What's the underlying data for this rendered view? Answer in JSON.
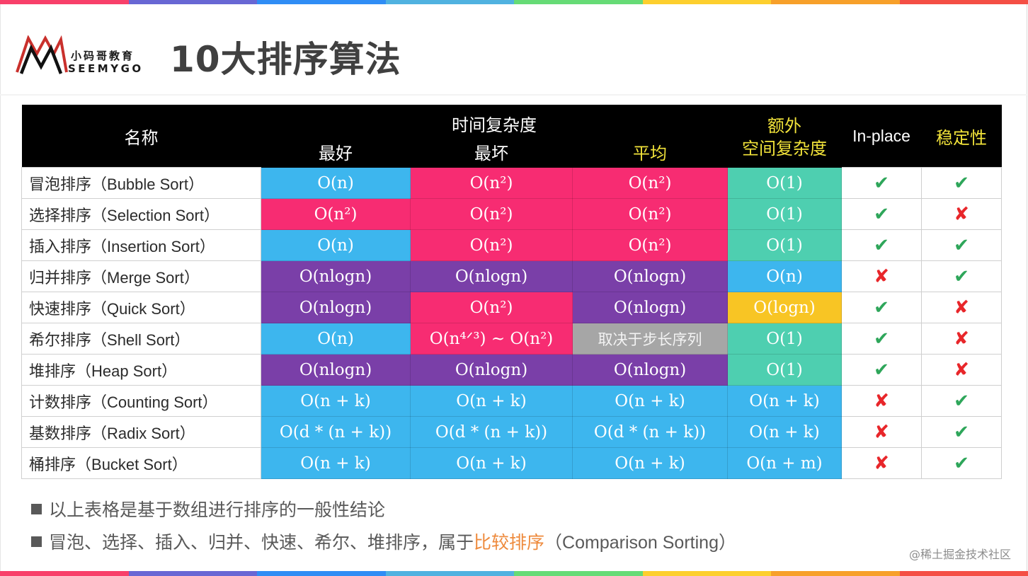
{
  "colors": {
    "rainbow": [
      "#f8406a",
      "#6867d4",
      "#2f8df5",
      "#50b2e0",
      "#66db76",
      "#fdcf2e",
      "#f7a02a",
      "#f44f45"
    ],
    "blue": "#3db6ee",
    "pink": "#f72c72",
    "purple": "#7a3fa8",
    "teal": "#4ecfb0",
    "yellow": "#f8c524",
    "gray": "#a6a6a6",
    "check_green": "#2ea65a",
    "cross_red": "#e8262a",
    "header_yellow": "#f2e33a",
    "highlight_orange": "#ee8a3c"
  },
  "logo": {
    "cn": "小码哥教育",
    "en": "SEEMYGO"
  },
  "title": "10大排序算法",
  "table": {
    "headers": {
      "name": "名称",
      "time_complexity": "时间复杂度",
      "best": "最好",
      "worst": "最坏",
      "average": "平均",
      "extra_space_line1": "额外",
      "extra_space_line2": "空间复杂度",
      "in_place": "In-place",
      "stable": "稳定性"
    },
    "rows": [
      {
        "cn": "冒泡排序（",
        "en": "Bubble Sort",
        "close": "）",
        "best": "O(n)",
        "best_c": "blue",
        "worst": "O(n²)",
        "worst_c": "pink",
        "avg": "O(n²)",
        "avg_c": "pink",
        "space": "O(1)",
        "space_c": "teal",
        "in_place": "✔",
        "in_place_ok": true,
        "stable": "✔",
        "stable_ok": true
      },
      {
        "cn": "选择排序（",
        "en": "Selection Sort",
        "close": "）",
        "best": "O(n²)",
        "best_c": "pink",
        "worst": "O(n²)",
        "worst_c": "pink",
        "avg": "O(n²)",
        "avg_c": "pink",
        "space": "O(1)",
        "space_c": "teal",
        "in_place": "✔",
        "in_place_ok": true,
        "stable": "✘",
        "stable_ok": false
      },
      {
        "cn": "插入排序（",
        "en": "Insertion Sort",
        "close": "）",
        "best": "O(n)",
        "best_c": "blue",
        "worst": "O(n²)",
        "worst_c": "pink",
        "avg": "O(n²)",
        "avg_c": "pink",
        "space": "O(1)",
        "space_c": "teal",
        "in_place": "✔",
        "in_place_ok": true,
        "stable": "✔",
        "stable_ok": true
      },
      {
        "cn": "归并排序（",
        "en": "Merge Sort",
        "close": "）",
        "best": "O(nlogn)",
        "best_c": "purple",
        "worst": "O(nlogn)",
        "worst_c": "purple",
        "avg": "O(nlogn)",
        "avg_c": "purple",
        "space": "O(n)",
        "space_c": "blue",
        "in_place": "✘",
        "in_place_ok": false,
        "stable": "✔",
        "stable_ok": true
      },
      {
        "cn": "快速排序（",
        "en": "Quick Sort",
        "close": "）",
        "best": "O(nlogn)",
        "best_c": "purple",
        "worst": "O(n²)",
        "worst_c": "pink",
        "avg": "O(nlogn)",
        "avg_c": "purple",
        "space": "O(logn)",
        "space_c": "yellow",
        "in_place": "✔",
        "in_place_ok": true,
        "stable": "✘",
        "stable_ok": false
      },
      {
        "cn": "希尔排序（",
        "en": "Shell Sort",
        "close": "）",
        "best": "O(n)",
        "best_c": "blue",
        "worst": "O(n⁴ᐟ³) ~ O(n²)",
        "worst_c": "pink",
        "avg": "取决于步长序列",
        "avg_c": "gray",
        "space": "O(1)",
        "space_c": "teal",
        "in_place": "✔",
        "in_place_ok": true,
        "stable": "✘",
        "stable_ok": false
      },
      {
        "cn": "堆排序（",
        "en": "Heap Sort",
        "close": "）",
        "best": "O(nlogn)",
        "best_c": "purple",
        "worst": "O(nlogn)",
        "worst_c": "purple",
        "avg": "O(nlogn)",
        "avg_c": "purple",
        "space": "O(1)",
        "space_c": "teal",
        "in_place": "✔",
        "in_place_ok": true,
        "stable": "✘",
        "stable_ok": false
      },
      {
        "cn": "计数排序（",
        "en": "Counting Sort",
        "close": "）",
        "best": "O(n + k)",
        "best_c": "blue",
        "worst": "O(n + k)",
        "worst_c": "blue",
        "avg": "O(n + k)",
        "avg_c": "blue",
        "space": "O(n + k)",
        "space_c": "blue",
        "in_place": "✘",
        "in_place_ok": false,
        "stable": "✔",
        "stable_ok": true
      },
      {
        "cn": "基数排序（",
        "en": "Radix Sort",
        "close": "）",
        "best": "O(d * (n + k))",
        "best_c": "blue",
        "worst": "O(d * (n + k))",
        "worst_c": "blue",
        "avg": "O(d * (n + k))",
        "avg_c": "blue",
        "space": "O(n + k)",
        "space_c": "blue",
        "in_place": "✘",
        "in_place_ok": false,
        "stable": "✔",
        "stable_ok": true
      },
      {
        "cn": "桶排序（",
        "en": "Bucket Sort",
        "close": "）",
        "best": "O(n + k)",
        "best_c": "blue",
        "worst": "O(n + k)",
        "worst_c": "blue",
        "avg": "O(n + k)",
        "avg_c": "blue",
        "space": "O(n + m)",
        "space_c": "blue",
        "in_place": "✘",
        "in_place_ok": false,
        "stable": "✔",
        "stable_ok": true
      }
    ]
  },
  "notes": [
    {
      "text": "以上表格是基于数组进行排序的一般性结论"
    },
    {
      "prefix": "冒泡、选择、插入、归并、快速、希尔、堆排序，属于",
      "highlight": "比较排序",
      "suffix": "（Comparison Sorting）"
    }
  ],
  "watermark": "@稀土掘金技术社区"
}
